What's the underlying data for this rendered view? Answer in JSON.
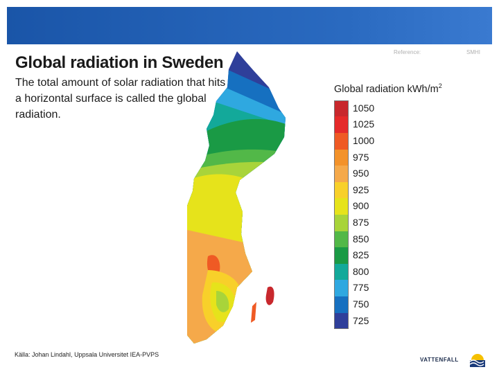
{
  "slide": {
    "title": "Global radiation in Sweden",
    "description": "The total amount of solar radiation that hits a horizontal surface is called the global radiation.",
    "reference_label": "Reference:",
    "reference_value": "SMHI",
    "source": "Källa: Johan Lindahl, Uppsala Universitet IEA-PVPS",
    "brand": "VATTENFALL"
  },
  "legend": {
    "title": "Global radiation kWh/m",
    "title_sup": "2",
    "items": [
      {
        "value": "1050",
        "color": "#c8282d"
      },
      {
        "value": "1025",
        "color": "#e52a2a"
      },
      {
        "value": "1000",
        "color": "#ef5a24"
      },
      {
        "value": "975",
        "color": "#f3922a"
      },
      {
        "value": "950",
        "color": "#f5a94a"
      },
      {
        "value": "925",
        "color": "#f8d02a"
      },
      {
        "value": "900",
        "color": "#e6e31b"
      },
      {
        "value": "875",
        "color": "#a8d43a"
      },
      {
        "value": "850",
        "color": "#52b848"
      },
      {
        "value": "825",
        "color": "#1a9a45"
      },
      {
        "value": "800",
        "color": "#13a99a"
      },
      {
        "value": "775",
        "color": "#2fa8e0"
      },
      {
        "value": "750",
        "color": "#1670c0"
      },
      {
        "value": "725",
        "color": "#2f3f9a"
      }
    ]
  },
  "colors": {
    "header_bar": "#2a6ac0",
    "brand_blue": "#1a3a7a",
    "brand_yellow": "#f5c000"
  }
}
